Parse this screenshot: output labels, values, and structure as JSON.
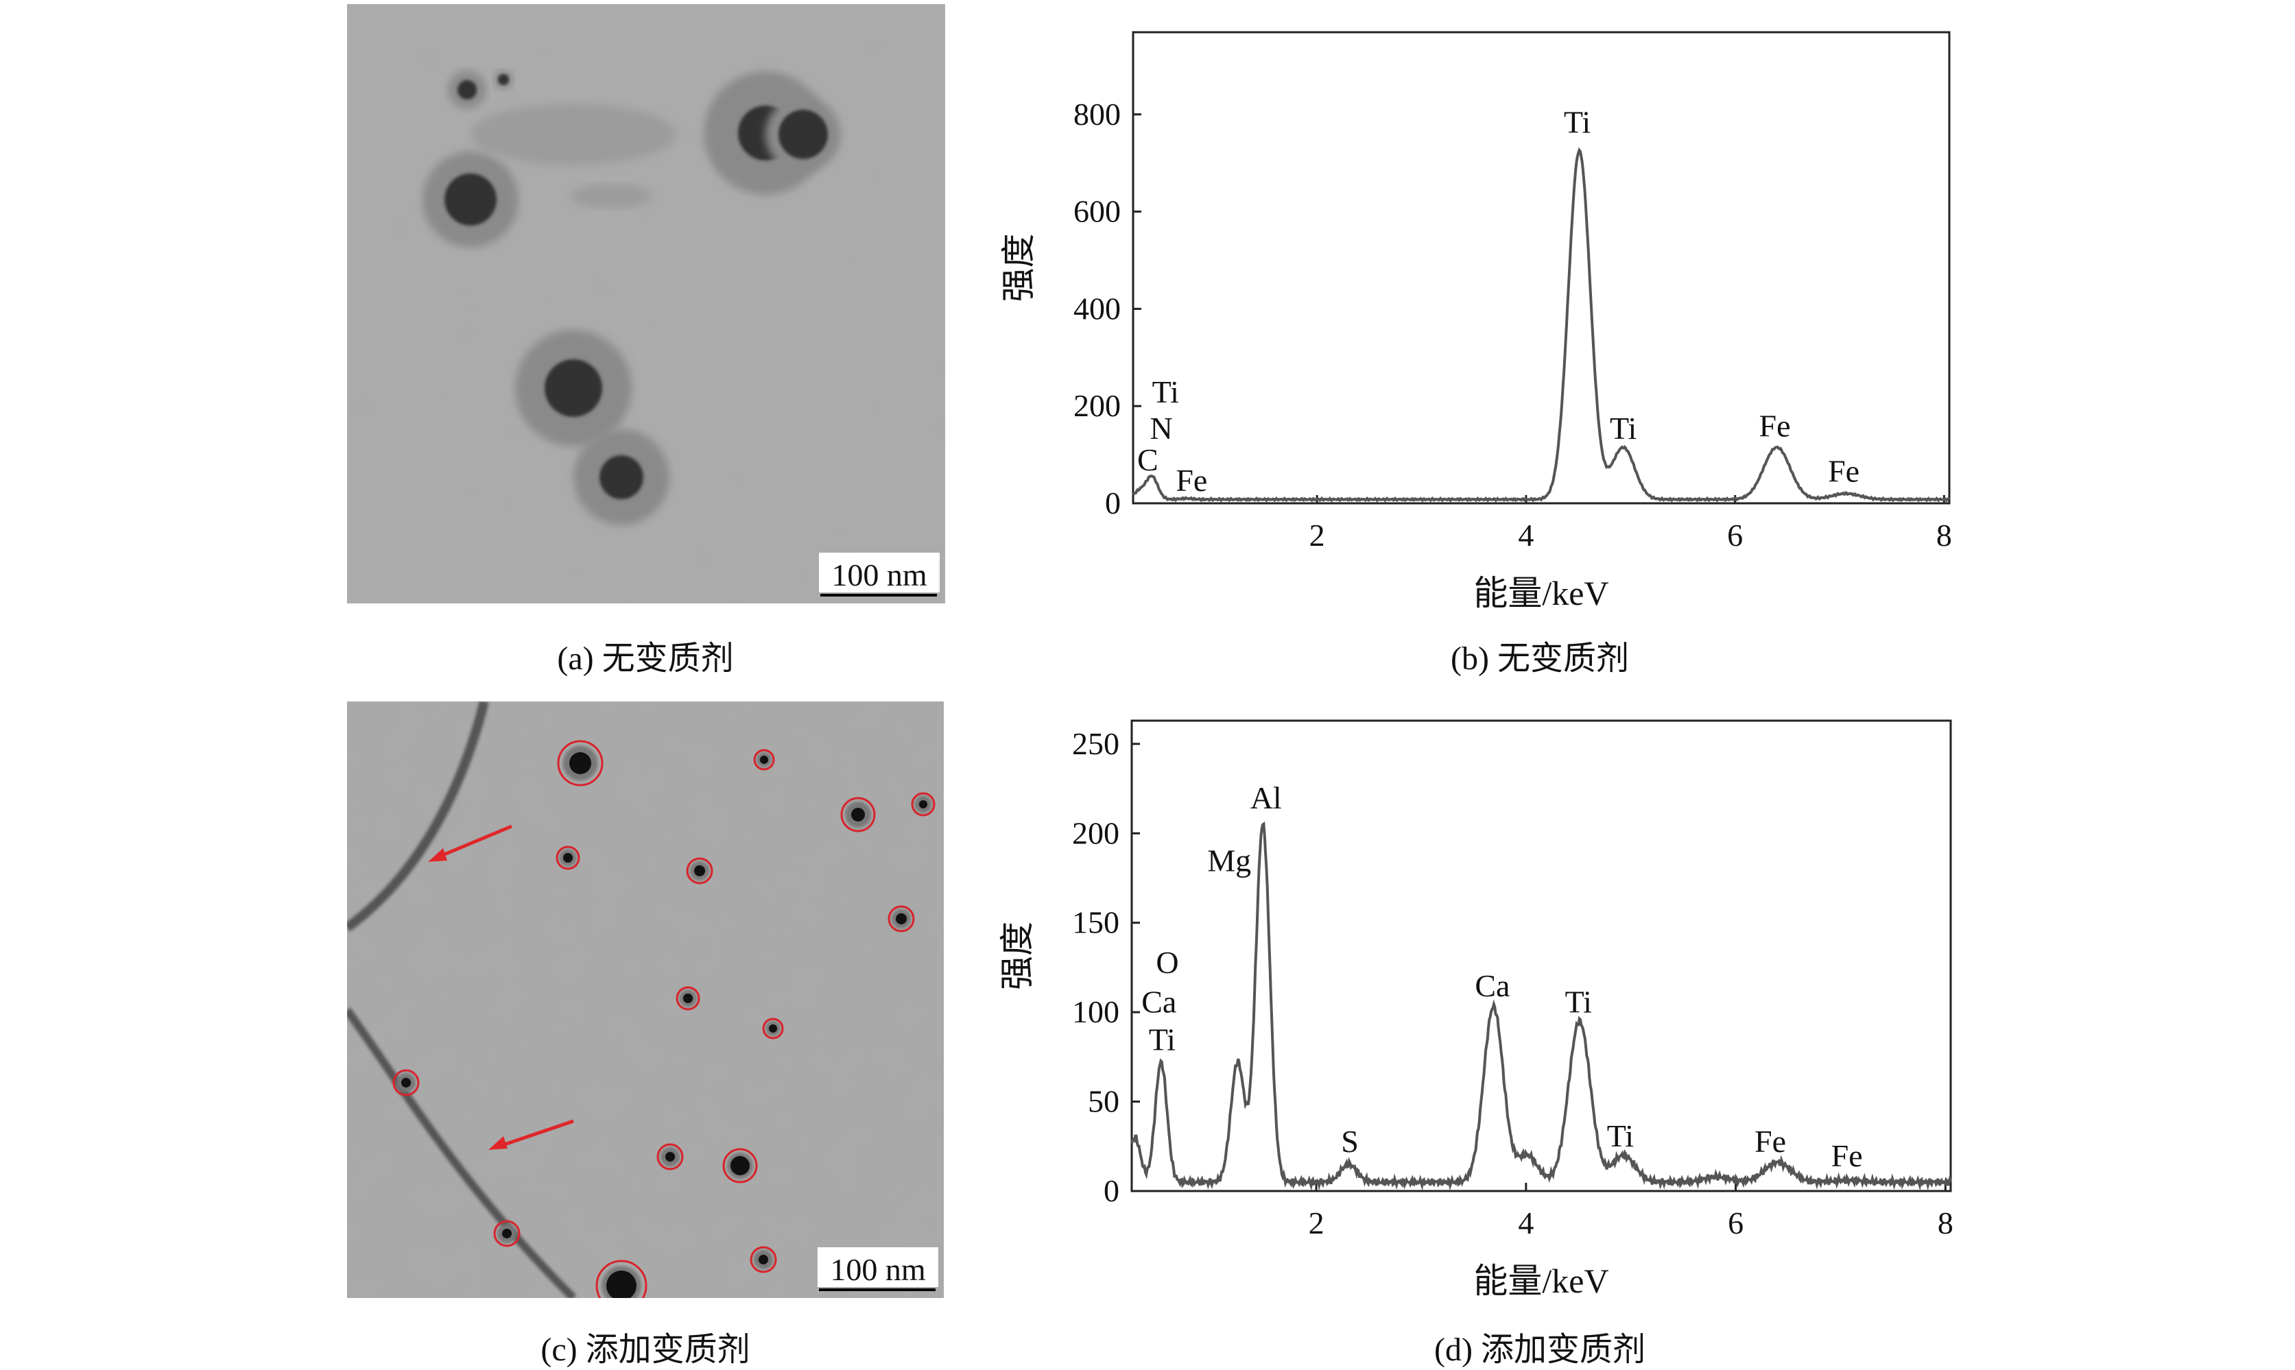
{
  "panels": {
    "a": {
      "caption": "(a) 无变质剂",
      "scale_bar": "100 nm"
    },
    "c": {
      "caption": "(c) 添加变质剂",
      "scale_bar": "100 nm"
    }
  },
  "chart_data": [
    {
      "id": "b",
      "type": "line",
      "caption": "(b) 无变质剂",
      "xlabel": "能量/keV",
      "ylabel": "强度",
      "xlim": [
        0.24,
        8.05
      ],
      "ylim": [
        0,
        969
      ],
      "xticks": [
        2,
        4,
        6,
        8
      ],
      "yticks": [
        0,
        200,
        400,
        600,
        800
      ],
      "grid": false,
      "baseline": 8,
      "peaks": [
        {
          "x": 0.3,
          "y": 25
        },
        {
          "x": 0.42,
          "y": 55
        },
        {
          "x": 0.75,
          "y": 10
        },
        {
          "x": 4.51,
          "y": 725
        },
        {
          "x": 4.93,
          "y": 115
        },
        {
          "x": 6.4,
          "y": 115
        },
        {
          "x": 7.06,
          "y": 20
        }
      ],
      "annotations": [
        {
          "text": "Ti",
          "x": 4.49,
          "y": 785
        },
        {
          "text": "Ti",
          "x": 4.93,
          "y": 155
        },
        {
          "text": "Fe",
          "x": 6.38,
          "y": 160
        },
        {
          "text": "Fe",
          "x": 7.04,
          "y": 67
        },
        {
          "text": "Ti",
          "x": 0.55,
          "y": 230
        },
        {
          "text": "N",
          "x": 0.51,
          "y": 155
        },
        {
          "text": "C",
          "x": 0.38,
          "y": 90
        },
        {
          "text": "Fe",
          "x": 0.8,
          "y": 48
        }
      ]
    },
    {
      "id": "d",
      "type": "line",
      "caption": "(d) 添加变质剂",
      "xlabel": "能量/keV",
      "ylabel": "强度",
      "xlim": [
        0.24,
        8.05
      ],
      "ylim": [
        0,
        263
      ],
      "xticks": [
        2,
        4,
        6,
        8
      ],
      "yticks": [
        0,
        50,
        100,
        150,
        200,
        250
      ],
      "grid": false,
      "baseline": 5,
      "peaks": [
        {
          "x": 0.27,
          "y": 30
        },
        {
          "x": 0.52,
          "y": 72
        },
        {
          "x": 1.25,
          "y": 72
        },
        {
          "x": 1.49,
          "y": 205
        },
        {
          "x": 2.31,
          "y": 15
        },
        {
          "x": 3.69,
          "y": 103
        },
        {
          "x": 4.01,
          "y": 20
        },
        {
          "x": 4.51,
          "y": 95
        },
        {
          "x": 4.93,
          "y": 20
        },
        {
          "x": 5.82,
          "y": 8
        },
        {
          "x": 6.4,
          "y": 16
        },
        {
          "x": 7.06,
          "y": 6
        }
      ],
      "annotations": [
        {
          "text": "Al",
          "x": 1.52,
          "y": 220
        },
        {
          "text": "Mg",
          "x": 1.17,
          "y": 185
        },
        {
          "text": "O",
          "x": 0.58,
          "y": 128
        },
        {
          "text": "Ca",
          "x": 0.5,
          "y": 106
        },
        {
          "text": "Ti",
          "x": 0.53,
          "y": 85
        },
        {
          "text": "S",
          "x": 2.32,
          "y": 28
        },
        {
          "text": "Ca",
          "x": 3.68,
          "y": 115
        },
        {
          "text": "Ti",
          "x": 4.5,
          "y": 106
        },
        {
          "text": "Ti",
          "x": 4.9,
          "y": 31
        },
        {
          "text": "Fe",
          "x": 6.33,
          "y": 28
        },
        {
          "text": "Fe",
          "x": 7.06,
          "y": 20
        }
      ]
    }
  ],
  "colors": {
    "spectrum_line": "#555555",
    "tem_background": "#a9a9a9",
    "highlight_circle": "#d8242c",
    "arrow": "#e0262a"
  }
}
